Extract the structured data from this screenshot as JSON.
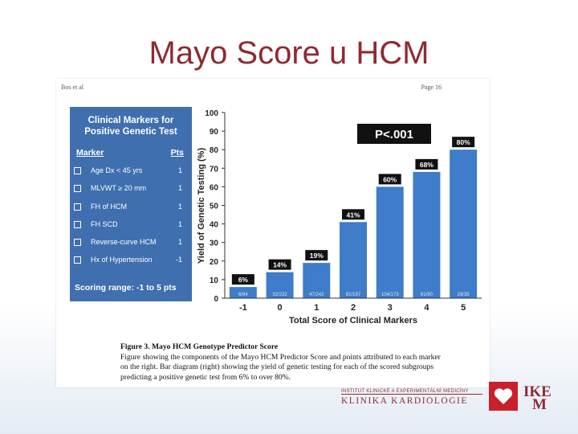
{
  "slide": {
    "title": "Mayo Score u HCM"
  },
  "figure": {
    "header_left": "Bos et al",
    "header_right": "Page 16",
    "panel": {
      "title": "Clinical Markers for Positive Genetic Test",
      "col_marker": "Marker",
      "col_pts": "Pts",
      "markers": [
        {
          "label": "Age Dx < 45 yrs",
          "pts": "1"
        },
        {
          "label": "MLVWT ≥ 20 mm",
          "pts": "1"
        },
        {
          "label": "FH of HCM",
          "pts": "1"
        },
        {
          "label": "FH SCD",
          "pts": "1"
        },
        {
          "label": "Reverse-curve HCM",
          "pts": "1"
        },
        {
          "label": "Hx of Hypertension",
          "pts": "-1"
        }
      ],
      "scoring": "Scoring range:  -1 to 5 pts"
    },
    "caption": {
      "title": "Figure 3. Mayo HCM Genotype Predictor Score",
      "text": "Figure showing the components of the Mayo HCM Predictor Score and points attributed to each marker on the right. Bar diagram (right) showing the yield of genetic testing for each of the scored subgroups predicting a positive genetic test from 6% to over 80%."
    }
  },
  "chart_data": {
    "type": "bar",
    "categories": [
      "-1",
      "0",
      "1",
      "2",
      "3",
      "4",
      "5"
    ],
    "values": [
      6,
      14,
      19,
      41,
      60,
      68,
      80
    ],
    "data_labels": [
      "6%",
      "14%",
      "19%",
      "41%",
      "60%",
      "68%",
      "80%"
    ],
    "fractions": [
      "6/94",
      "32/222",
      "47/242",
      "81/197",
      "104/173",
      "61/90",
      "28/35"
    ],
    "title": "",
    "xlabel": "Total Score of Clinical Markers",
    "ylabel": "Yield of Genetic Testing (%)",
    "ylim": [
      0,
      100
    ],
    "yticks": [
      "0",
      "10",
      "20",
      "30",
      "40",
      "50",
      "60",
      "70",
      "80",
      "90",
      "100"
    ],
    "annotation": "P<.001",
    "bar_color": "#3f7cc9"
  },
  "branding": {
    "institute": "INSTITUT KLINICKÉ A EXPERIMENTÁLNÍ MEDICÍNY",
    "department": "KLINIKA KARDIOLOGIE",
    "logo_line1": "IKE",
    "logo_line2": "M"
  }
}
